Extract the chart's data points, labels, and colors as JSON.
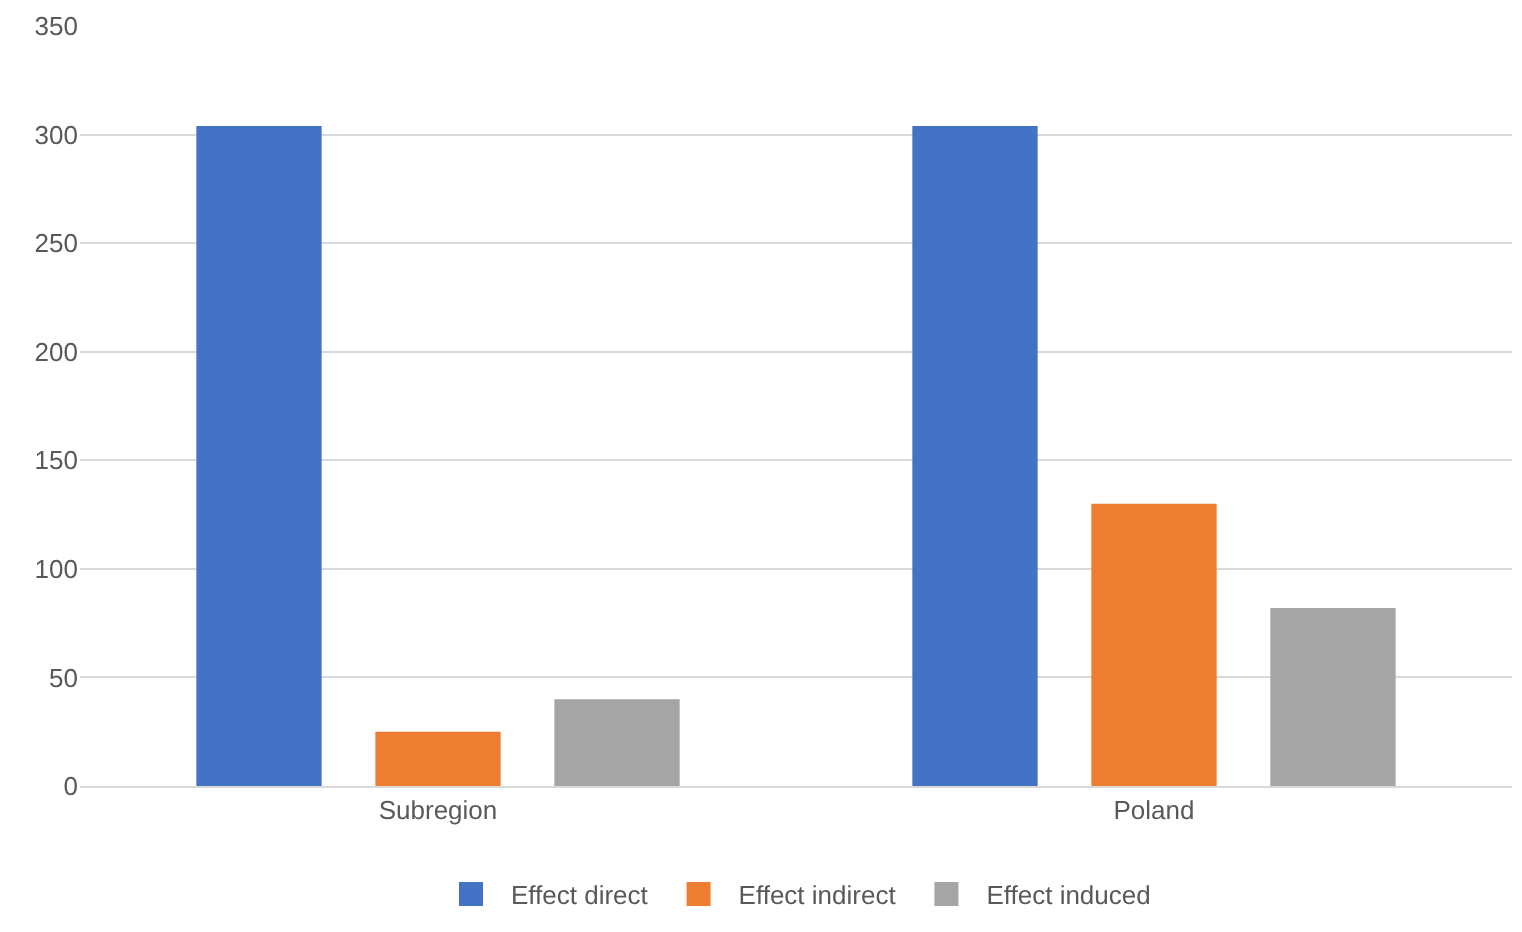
{
  "chart_data": {
    "type": "bar",
    "categories": [
      "Subregion",
      "Poland"
    ],
    "series": [
      {
        "name": "Effect direct",
        "color": "#4472c4",
        "values": [
          304,
          304
        ]
      },
      {
        "name": "Effect indirect",
        "color": "#ed7d31",
        "values": [
          25,
          130
        ]
      },
      {
        "name": "Effect induced",
        "color": "#a5a5a5",
        "values": [
          40,
          82
        ]
      }
    ],
    "ylim": [
      0,
      350
    ],
    "yticks": [
      0,
      50,
      100,
      150,
      200,
      250,
      300,
      350
    ],
    "grid": "y",
    "legend": "bottom"
  }
}
